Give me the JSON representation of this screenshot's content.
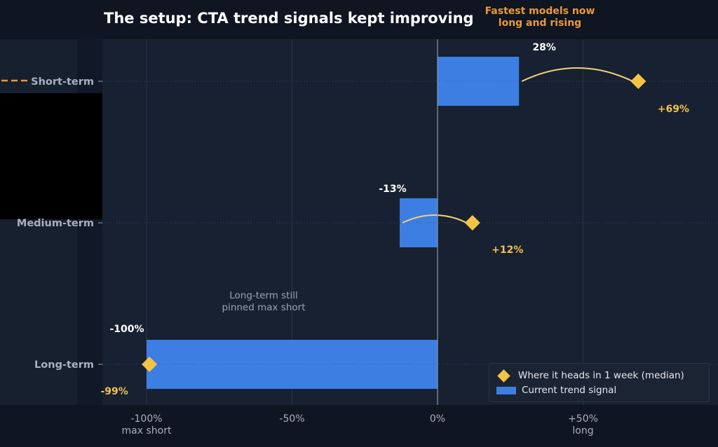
{
  "title": "The setup: CTA trend signals kept improving",
  "callout": [
    "Fastest models now",
    "long and rising"
  ],
  "annotation": [
    "Long-term still",
    "pinned max short"
  ],
  "legend": {
    "diamond_label": "Where it heads in 1 week (median)",
    "bar_label": "Current trend signal"
  },
  "colors": {
    "background": "#111827",
    "plot_bg": "#172131",
    "bar": "#3d7ee3",
    "marker": "#f6c443",
    "callout": "#e89a3c",
    "marker_label": "#f0c24a"
  },
  "chart_data": {
    "type": "bar",
    "orientation": "horizontal",
    "categories": [
      "Short-term",
      "Medium-term",
      "Long-term"
    ],
    "xlim": [
      -110,
      90
    ],
    "x_ticks": [
      {
        "value": -100,
        "label": "-100%",
        "sublabel": "max short"
      },
      {
        "value": -50,
        "label": "-50%",
        "sublabel": ""
      },
      {
        "value": 0,
        "label": "0%",
        "sublabel": ""
      },
      {
        "value": 50,
        "label": "+50%",
        "sublabel": "long"
      }
    ],
    "series": [
      {
        "name": "Current trend signal",
        "values": [
          28,
          -13,
          -100
        ],
        "labels": [
          "28%",
          "-13%",
          "-100%"
        ]
      },
      {
        "name": "Where it heads in 1 week (median)",
        "values": [
          69,
          12,
          -99
        ],
        "labels": [
          "+69%",
          "+12%",
          "-99%"
        ]
      }
    ],
    "grid": true,
    "legend_position": "bottom-right"
  }
}
